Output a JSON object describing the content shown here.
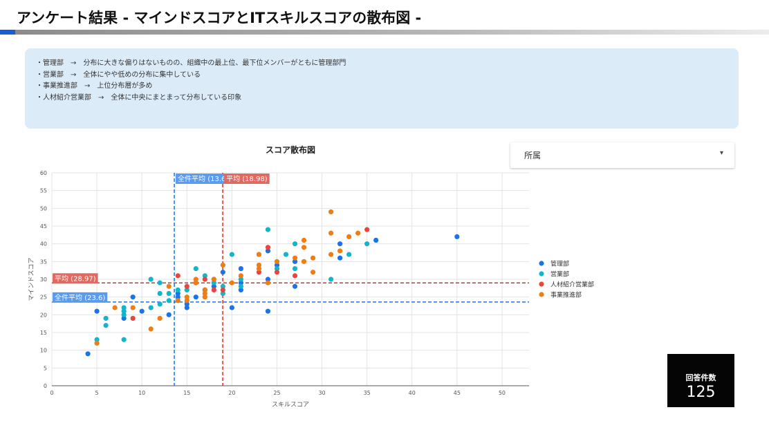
{
  "page": {
    "title": "アンケート結果 - マインドスコアとITスキルスコアの散布図 -"
  },
  "notes": {
    "items": [
      "・管理部　→　分布に大きな偏りはないものの、組織中の最上位、最下位メンバーがともに管理部門",
      "・営業部　→　全体にやや低めの分布に集中している",
      "・事業推進部　→　上位分布層が多め",
      "・人材紹介営業部　→　全体に中央にまとまって分布している印象"
    ]
  },
  "filter": {
    "label": "所属",
    "icon": "caret-down-icon"
  },
  "summary": {
    "label": "回答件数",
    "value": "125"
  },
  "chart_data": {
    "type": "scatter",
    "title": "スコア散布図",
    "xlabel": "スキルスコア",
    "ylabel": "マインドスコア",
    "xlim": [
      0,
      53
    ],
    "ylim": [
      0,
      60
    ],
    "x_ticks": [
      0,
      5,
      10,
      15,
      20,
      25,
      30,
      35,
      40,
      45,
      50
    ],
    "y_ticks": [
      0,
      5,
      10,
      15,
      20,
      25,
      30,
      35,
      40,
      45,
      50,
      55,
      60
    ],
    "grid": true,
    "legend_position": "right",
    "series": [
      {
        "name": "管理部",
        "color": "#1a73e8",
        "points": [
          [
            4,
            9
          ],
          [
            5,
            21
          ],
          [
            8,
            19
          ],
          [
            9,
            25
          ],
          [
            10,
            21
          ],
          [
            13,
            20
          ],
          [
            14,
            26
          ],
          [
            14,
            25
          ],
          [
            15,
            22
          ],
          [
            15,
            23
          ],
          [
            16,
            25
          ],
          [
            17,
            27
          ],
          [
            18,
            28
          ],
          [
            19,
            32
          ],
          [
            20,
            22
          ],
          [
            21,
            27
          ],
          [
            21,
            29
          ],
          [
            21,
            33
          ],
          [
            24,
            21
          ],
          [
            24,
            30
          ],
          [
            24,
            38
          ],
          [
            25,
            34
          ],
          [
            27,
            28
          ],
          [
            27,
            35
          ],
          [
            32,
            36
          ],
          [
            32,
            40
          ],
          [
            36,
            41
          ],
          [
            45,
            42
          ]
        ]
      },
      {
        "name": "営業部",
        "color": "#12b5cb",
        "points": [
          [
            5,
            13
          ],
          [
            6,
            17
          ],
          [
            6,
            19
          ],
          [
            8,
            13
          ],
          [
            8,
            20
          ],
          [
            8,
            21
          ],
          [
            8,
            22
          ],
          [
            11,
            22
          ],
          [
            11,
            30
          ],
          [
            12,
            26
          ],
          [
            12,
            23
          ],
          [
            12,
            29
          ],
          [
            13,
            26
          ],
          [
            13,
            24
          ],
          [
            14,
            24
          ],
          [
            14,
            27
          ],
          [
            15,
            27
          ],
          [
            16,
            33
          ],
          [
            17,
            31
          ],
          [
            18,
            29
          ],
          [
            18,
            30
          ],
          [
            19,
            28
          ],
          [
            19,
            26
          ],
          [
            20,
            37
          ],
          [
            21,
            30
          ],
          [
            21,
            28
          ],
          [
            23,
            37
          ],
          [
            24,
            44
          ],
          [
            25,
            33
          ],
          [
            26,
            37
          ],
          [
            27,
            33
          ],
          [
            27,
            40
          ],
          [
            31,
            30
          ],
          [
            33,
            37
          ],
          [
            35,
            40
          ]
        ]
      },
      {
        "name": "人材紹介営業部",
        "color": "#e8453c",
        "points": [
          [
            9,
            19
          ],
          [
            14,
            31
          ],
          [
            15,
            28
          ],
          [
            16,
            29
          ],
          [
            17,
            30
          ],
          [
            18,
            27
          ],
          [
            19,
            27
          ],
          [
            23,
            32
          ],
          [
            24,
            39
          ],
          [
            25,
            32
          ],
          [
            27,
            31
          ],
          [
            35,
            44
          ]
        ]
      },
      {
        "name": "事業推進部",
        "color": "#f07d14",
        "points": [
          [
            5,
            12
          ],
          [
            7,
            22
          ],
          [
            9,
            22
          ],
          [
            11,
            16
          ],
          [
            12,
            19
          ],
          [
            13,
            28
          ],
          [
            14,
            24
          ],
          [
            15,
            25
          ],
          [
            15,
            24
          ],
          [
            16,
            29
          ],
          [
            16,
            30
          ],
          [
            17,
            25
          ],
          [
            17,
            26
          ],
          [
            17,
            27
          ],
          [
            18,
            30
          ],
          [
            19,
            34
          ],
          [
            20,
            29
          ],
          [
            21,
            31
          ],
          [
            23,
            33
          ],
          [
            23,
            34
          ],
          [
            23,
            37
          ],
          [
            24,
            29
          ],
          [
            25,
            35
          ],
          [
            27,
            36
          ],
          [
            28,
            35
          ],
          [
            28,
            39
          ],
          [
            28,
            41
          ],
          [
            29,
            32
          ],
          [
            29,
            36
          ],
          [
            31,
            37
          ],
          [
            31,
            43
          ],
          [
            31,
            49
          ],
          [
            32,
            38
          ],
          [
            33,
            42
          ],
          [
            34,
            43
          ]
        ]
      }
    ],
    "reference_lines": [
      {
        "axis": "x",
        "value": 13.6,
        "label": "全件平均 (13.6)",
        "color": "#1a73e8"
      },
      {
        "axis": "x",
        "value": 18.98,
        "label": "平均 (18.98)",
        "color": "#d93025"
      },
      {
        "axis": "y",
        "value": 28.97,
        "label": "平均 (28.97)",
        "color": "#d93025"
      },
      {
        "axis": "y",
        "value": 23.6,
        "label": "全件平均 (23.6)",
        "color": "#1a73e8"
      }
    ]
  }
}
